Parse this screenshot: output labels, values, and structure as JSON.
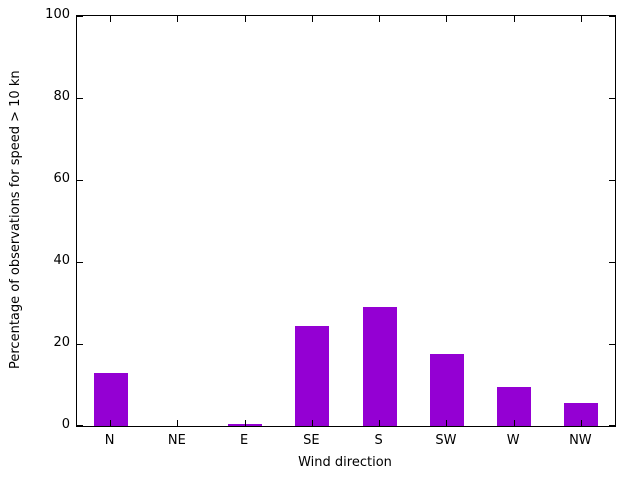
{
  "chart_data": {
    "type": "bar",
    "categories": [
      "N",
      "NE",
      "E",
      "SE",
      "S",
      "SW",
      "W",
      "NW"
    ],
    "values": [
      13,
      0,
      0.5,
      24.5,
      29,
      17.5,
      9.5,
      5.5
    ],
    "title": "",
    "xlabel": "Wind direction",
    "ylabel": "Percentage of observations for speed > 10 kn",
    "ylim": [
      0,
      100
    ],
    "yticks": [
      0,
      20,
      40,
      60,
      80,
      100
    ],
    "bar_color": "#9400d3",
    "axis_color": "#000000",
    "background_color": "#ffffff",
    "grid": false,
    "legend_position": "none"
  }
}
